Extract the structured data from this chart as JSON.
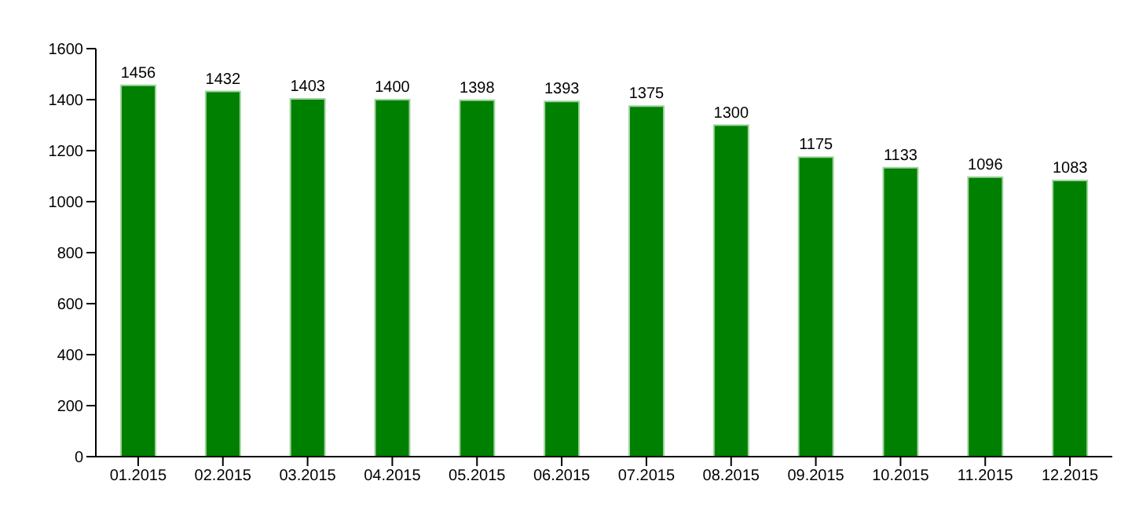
{
  "chart_data": {
    "type": "bar",
    "categories": [
      "01.2015",
      "02.2015",
      "03.2015",
      "04.2015",
      "05.2015",
      "06.2015",
      "07.2015",
      "08.2015",
      "09.2015",
      "10.2015",
      "11.2015",
      "12.2015"
    ],
    "values": [
      1456,
      1432,
      1403,
      1400,
      1398,
      1393,
      1375,
      1300,
      1175,
      1133,
      1096,
      1083
    ],
    "color": "#008000",
    "ylim": [
      0,
      1600
    ],
    "yticks": [
      0,
      200,
      400,
      600,
      800,
      1000,
      1200,
      1400,
      1600
    ],
    "grid": false,
    "data_labels": true
  }
}
